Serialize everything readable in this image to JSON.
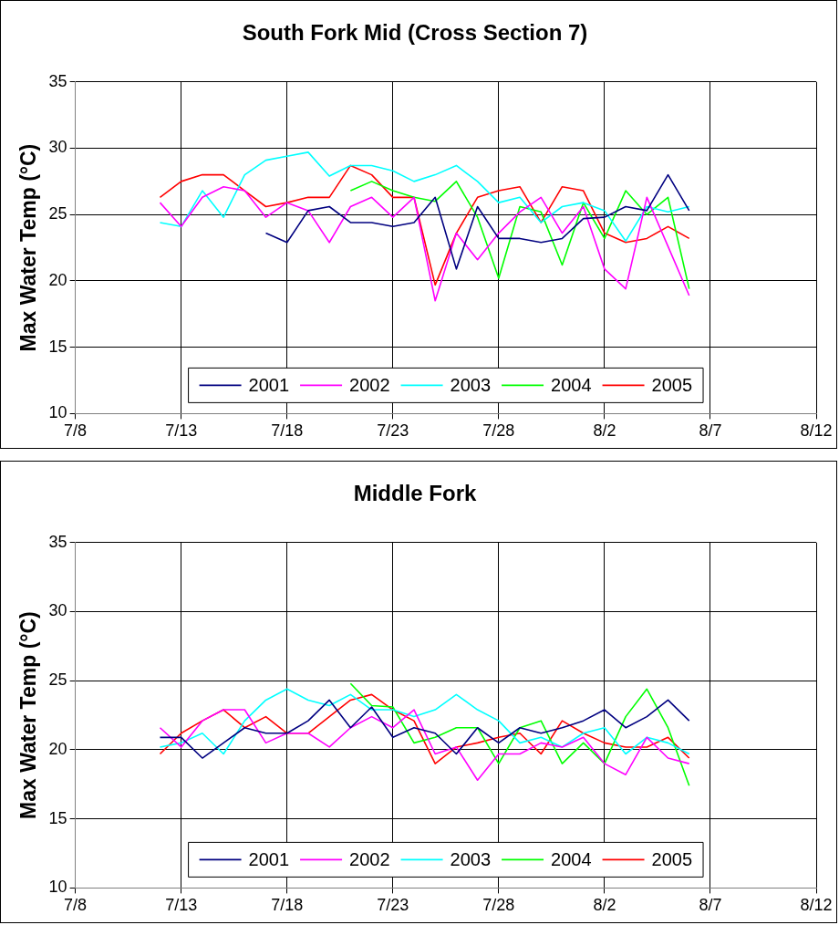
{
  "chart_data": [
    {
      "type": "line",
      "title": "South Fork Mid (Cross Section 7)",
      "ylabel": "Max Water Temp (°C)",
      "x": [
        "--07-12",
        "--07-13",
        "--07-14",
        "--07-15",
        "--07-16",
        "--07-17",
        "--07-18",
        "--07-19",
        "--07-20",
        "--07-21",
        "--07-22",
        "--07-23",
        "--07-24",
        "--07-25",
        "--07-26",
        "--07-27",
        "--07-28",
        "--07-29",
        "--07-30",
        "--07-31",
        "--08-01",
        "--08-02",
        "--08-03",
        "--08-04",
        "--08-05",
        "--08-06"
      ],
      "series": [
        {
          "name": "2001",
          "color": "#000080",
          "values": [
            null,
            null,
            null,
            null,
            null,
            23.6,
            22.9,
            25.3,
            25.6,
            24.4,
            24.4,
            24.1,
            24.4,
            26.3,
            20.9,
            25.6,
            23.2,
            23.2,
            22.9,
            23.2,
            24.7,
            24.8,
            25.6,
            25.3,
            28.0,
            25.3
          ]
        },
        {
          "name": "2002",
          "color": "#ff00ff",
          "values": [
            25.9,
            24.1,
            26.3,
            27.1,
            26.8,
            24.8,
            25.9,
            25.3,
            22.9,
            25.6,
            26.3,
            24.8,
            26.3,
            18.5,
            23.6,
            21.6,
            23.6,
            25.2,
            26.3,
            23.6,
            25.6,
            20.9,
            19.4,
            26.3,
            22.6,
            18.9
          ]
        },
        {
          "name": "2003",
          "color": "#00ffff",
          "values": [
            24.4,
            24.1,
            26.8,
            24.8,
            28.0,
            29.1,
            29.4,
            29.7,
            27.9,
            28.7,
            28.7,
            28.3,
            27.5,
            28.0,
            28.7,
            27.5,
            25.9,
            26.3,
            24.4,
            25.6,
            25.9,
            25.3,
            23.0,
            25.6,
            25.2,
            25.6
          ]
        },
        {
          "name": "2004",
          "color": "#00ff00",
          "values": [
            null,
            null,
            null,
            null,
            null,
            null,
            null,
            null,
            null,
            26.8,
            27.5,
            26.8,
            26.3,
            26.0,
            27.5,
            24.8,
            20.2,
            25.6,
            25.2,
            21.2,
            25.9,
            23.2,
            26.8,
            25.0,
            26.3,
            19.4
          ]
        },
        {
          "name": "2005",
          "color": "#ff0000",
          "values": [
            26.3,
            27.5,
            28.0,
            28.0,
            26.8,
            25.6,
            25.9,
            26.3,
            26.3,
            28.7,
            28.0,
            26.3,
            26.3,
            19.7,
            23.6,
            26.3,
            26.8,
            27.1,
            24.4,
            27.1,
            26.8,
            23.6,
            22.9,
            23.2,
            24.1,
            23.2
          ]
        }
      ],
      "xlim": [
        "--07-08",
        "--08-12"
      ],
      "xticks": [
        {
          "value": "--07-08",
          "label": "7/8"
        },
        {
          "value": "--07-13",
          "label": "7/13"
        },
        {
          "value": "--07-18",
          "label": "7/18"
        },
        {
          "value": "--07-23",
          "label": "7/23"
        },
        {
          "value": "--07-28",
          "label": "7/28"
        },
        {
          "value": "--08-02",
          "label": "8/2"
        },
        {
          "value": "--08-07",
          "label": "8/7"
        },
        {
          "value": "--08-12",
          "label": "8/12"
        }
      ],
      "ylim": [
        10,
        35
      ],
      "yticks": [
        10,
        15,
        20,
        25,
        30,
        35
      ],
      "grid": true,
      "legend": "bottom",
      "marker": "none",
      "line_style": "solid"
    },
    {
      "type": "line",
      "title": "Middle Fork",
      "ylabel": "Max Water Temp (°C)",
      "x": [
        "--07-12",
        "--07-13",
        "--07-14",
        "--07-15",
        "--07-16",
        "--07-17",
        "--07-18",
        "--07-19",
        "--07-20",
        "--07-21",
        "--07-22",
        "--07-23",
        "--07-24",
        "--07-25",
        "--07-26",
        "--07-27",
        "--07-28",
        "--07-29",
        "--07-30",
        "--07-31",
        "--08-01",
        "--08-02",
        "--08-03",
        "--08-04",
        "--08-05",
        "--08-06"
      ],
      "series": [
        {
          "name": "2001",
          "color": "#000080",
          "values": [
            20.9,
            20.9,
            19.4,
            20.5,
            21.6,
            21.2,
            21.2,
            22.1,
            23.6,
            21.6,
            23.1,
            20.9,
            21.6,
            21.2,
            19.7,
            21.6,
            20.5,
            21.6,
            21.2,
            21.6,
            22.1,
            22.9,
            21.6,
            22.4,
            23.6,
            22.1
          ]
        },
        {
          "name": "2002",
          "color": "#ff00ff",
          "values": [
            21.6,
            20.2,
            22.1,
            22.9,
            22.9,
            20.5,
            21.2,
            21.2,
            20.2,
            21.6,
            22.4,
            21.6,
            22.9,
            19.7,
            20.2,
            17.8,
            19.7,
            19.7,
            20.5,
            20.2,
            20.9,
            19.0,
            18.2,
            20.9,
            19.4,
            19.0
          ]
        },
        {
          "name": "2003",
          "color": "#00ffff",
          "values": [
            20.2,
            20.5,
            21.2,
            19.7,
            22.1,
            23.6,
            24.4,
            23.6,
            23.2,
            24.0,
            22.9,
            22.9,
            22.4,
            22.9,
            24.0,
            22.9,
            22.1,
            20.5,
            20.9,
            20.2,
            21.2,
            21.6,
            19.7,
            20.9,
            20.5,
            19.7
          ]
        },
        {
          "name": "2004",
          "color": "#00ff00",
          "values": [
            null,
            null,
            null,
            null,
            null,
            null,
            null,
            null,
            null,
            24.8,
            23.2,
            23.1,
            20.5,
            20.9,
            21.6,
            21.6,
            19.0,
            21.6,
            22.1,
            19.0,
            20.5,
            19.0,
            22.4,
            24.4,
            21.6,
            17.4
          ]
        },
        {
          "name": "2005",
          "color": "#ff0000",
          "values": [
            19.7,
            21.2,
            22.1,
            22.9,
            21.6,
            22.4,
            21.2,
            21.2,
            22.4,
            23.6,
            24.0,
            22.9,
            22.1,
            19.0,
            20.2,
            20.5,
            20.9,
            21.2,
            19.7,
            22.1,
            21.2,
            20.5,
            20.2,
            20.2,
            20.9,
            19.4
          ]
        }
      ],
      "xlim": [
        "--07-08",
        "--08-12"
      ],
      "xticks": [
        {
          "value": "--07-08",
          "label": "7/8"
        },
        {
          "value": "--07-13",
          "label": "7/13"
        },
        {
          "value": "--07-18",
          "label": "7/18"
        },
        {
          "value": "--07-23",
          "label": "7/23"
        },
        {
          "value": "--07-28",
          "label": "7/28"
        },
        {
          "value": "--08-02",
          "label": "8/2"
        },
        {
          "value": "--08-07",
          "label": "8/7"
        },
        {
          "value": "--08-12",
          "label": "8/12"
        }
      ],
      "ylim": [
        10,
        35
      ],
      "yticks": [
        10,
        15,
        20,
        25,
        30,
        35
      ],
      "grid": true,
      "legend": "bottom",
      "marker": "none",
      "line_style": "solid"
    }
  ]
}
